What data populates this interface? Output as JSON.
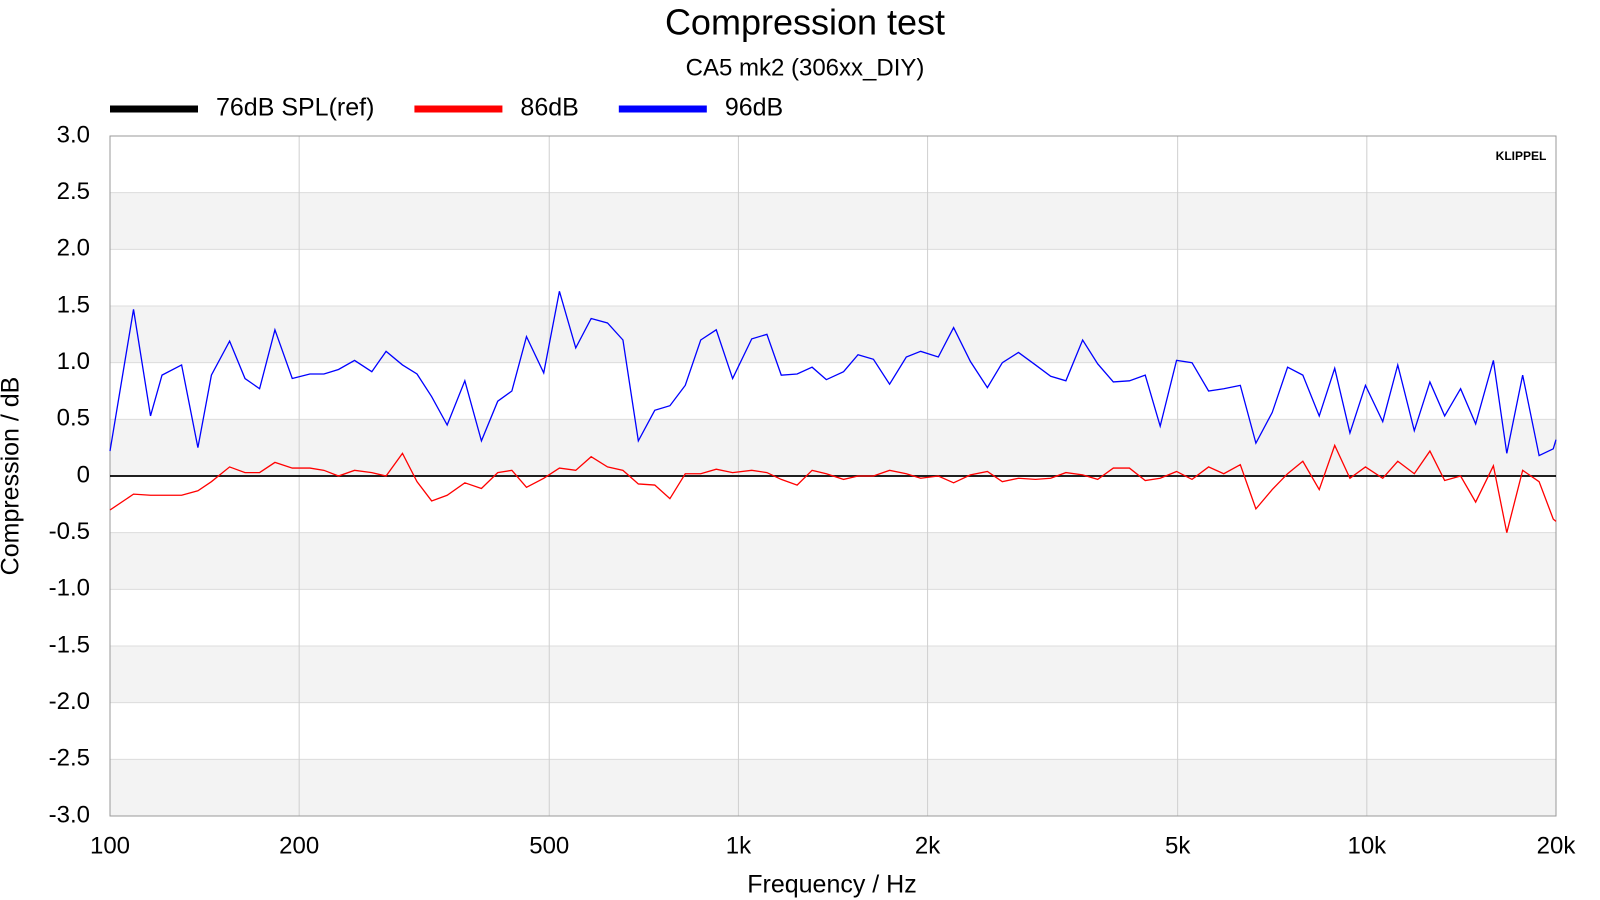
{
  "chart_data": {
    "type": "line",
    "title": "Compression test",
    "subtitle": "CA5 mk2 (306xx_DIY)",
    "xlabel": "Frequency / Hz",
    "ylabel": "Compression / dB",
    "logo": "KLIPPEL",
    "xscale": "log",
    "grid": true,
    "legend": "top",
    "xlim": [
      100,
      20000
    ],
    "ylim": [
      -3,
      3
    ],
    "xticks": [
      100,
      200,
      500,
      {
        "value": 1000,
        "label": "1k"
      },
      {
        "value": 2000,
        "label": "2k"
      },
      {
        "value": 5000,
        "label": "5k"
      },
      {
        "value": 10000,
        "label": "10k"
      },
      {
        "value": 20000,
        "label": "20k"
      }
    ],
    "yticks": [
      {
        "value": -3,
        "label": "-3.0"
      },
      -2.5,
      {
        "value": -2,
        "label": "-2.0"
      },
      -1.5,
      {
        "value": -1,
        "label": "-1.0"
      },
      -0.5,
      0,
      0.5,
      {
        "value": 1,
        "label": "1.0"
      },
      1.5,
      {
        "value": 2,
        "label": "2.0"
      },
      2.5,
      {
        "value": 3,
        "label": "3.0"
      }
    ],
    "x": [
      100,
      109,
      116,
      121,
      130,
      138,
      145,
      155,
      164,
      173,
      183,
      195,
      208,
      219,
      231,
      245,
      261,
      275,
      292,
      308,
      325,
      344,
      367,
      390,
      414,
      436,
      460,
      490,
      519,
      551,
      583,
      619,
      655,
      693,
      736,
      778,
      823,
      871,
      922,
      979,
      1050,
      1110,
      1170,
      1240,
      1310,
      1380,
      1470,
      1550,
      1640,
      1740,
      1850,
      1950,
      2080,
      2200,
      2340,
      2490,
      2630,
      2790,
      2970,
      3140,
      3320,
      3530,
      3730,
      3950,
      4190,
      4440,
      4690,
      4980,
      5270,
      5600,
      5920,
      6290,
      6660,
      7070,
      7480,
      7910,
      8400,
      8890,
      9400,
      9950,
      10600,
      11200,
      11900,
      12600,
      13300,
      14100,
      14900,
      15900,
      16700,
      17700,
      18800,
      19800,
      20000
    ],
    "series": [
      {
        "name": "76dB SPL(ref)",
        "color": "#000000",
        "x": [
          100,
          20000
        ],
        "values": [
          0,
          0
        ]
      },
      {
        "name": "86dB",
        "color": "#ff0000",
        "values": [
          -0.3,
          -0.16,
          -0.17,
          -0.17,
          -0.17,
          -0.13,
          -0.05,
          0.08,
          0.03,
          0.03,
          0.12,
          0.07,
          0.07,
          0.05,
          0.0,
          0.05,
          0.03,
          0.0,
          0.2,
          -0.05,
          -0.22,
          -0.17,
          -0.06,
          -0.11,
          0.03,
          0.05,
          -0.1,
          -0.02,
          0.07,
          0.05,
          0.17,
          0.08,
          0.05,
          -0.07,
          -0.08,
          -0.2,
          0.02,
          0.02,
          0.06,
          0.03,
          0.05,
          0.03,
          -0.03,
          -0.08,
          0.05,
          0.02,
          -0.03,
          0.0,
          0.0,
          0.05,
          0.02,
          -0.02,
          0.0,
          -0.06,
          0.01,
          0.04,
          -0.05,
          -0.02,
          -0.03,
          -0.02,
          0.03,
          0.01,
          -0.03,
          0.07,
          0.07,
          -0.04,
          -0.02,
          0.04,
          -0.03,
          0.08,
          0.02,
          0.1,
          -0.29,
          -0.12,
          0.02,
          0.13,
          -0.12,
          0.27,
          -0.02,
          0.08,
          -0.02,
          0.13,
          0.02,
          0.22,
          -0.04,
          0.0,
          -0.23,
          0.09,
          -0.5,
          0.05,
          -0.05,
          -0.38,
          -0.4
        ]
      },
      {
        "name": "96dB",
        "color": "#0000ff",
        "values": [
          0.22,
          1.47,
          0.53,
          0.89,
          0.98,
          0.25,
          0.89,
          1.19,
          0.86,
          0.77,
          1.29,
          0.86,
          0.9,
          0.9,
          0.94,
          1.02,
          0.92,
          1.1,
          0.98,
          0.9,
          0.7,
          0.45,
          0.84,
          0.31,
          0.66,
          0.75,
          1.23,
          0.91,
          1.63,
          1.13,
          1.39,
          1.35,
          1.2,
          0.31,
          0.58,
          0.62,
          0.8,
          1.2,
          1.29,
          0.86,
          1.21,
          1.25,
          0.89,
          0.9,
          0.96,
          0.85,
          0.92,
          1.07,
          1.03,
          0.81,
          1.05,
          1.1,
          1.05,
          1.31,
          1.01,
          0.78,
          1.0,
          1.09,
          0.98,
          0.88,
          0.84,
          1.2,
          0.99,
          0.83,
          0.84,
          0.89,
          0.44,
          1.02,
          1.0,
          0.75,
          0.77,
          0.8,
          0.29,
          0.56,
          0.96,
          0.89,
          0.53,
          0.95,
          0.38,
          0.8,
          0.48,
          0.98,
          0.4,
          0.83,
          0.53,
          0.77,
          0.46,
          1.02,
          0.2,
          0.89,
          0.18,
          0.24,
          0.32
        ]
      }
    ]
  }
}
